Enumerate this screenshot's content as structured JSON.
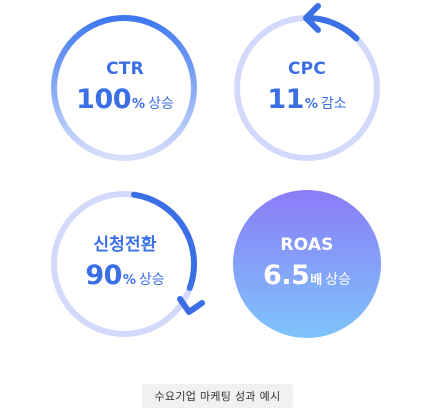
{
  "metrics": {
    "ctr": {
      "name": "CTR",
      "value": "100",
      "unit": "%",
      "change": "상승"
    },
    "cpc": {
      "name": "CPC",
      "value": "11",
      "unit": "%",
      "change": "감소"
    },
    "conv": {
      "name": "신청전환",
      "value": "90",
      "unit": "%",
      "change": "상승"
    },
    "roas": {
      "name": "ROAS",
      "value": "6.5",
      "unit": "배",
      "change": "상승"
    }
  },
  "caption": "수요기업 마케팅 성과 예시",
  "colors": {
    "accent": "#3b6fe6",
    "ring_light": "#d3d9fb",
    "roas_gradient_top": "#8b7cf6",
    "roas_gradient_bottom": "#7ec4fb"
  }
}
